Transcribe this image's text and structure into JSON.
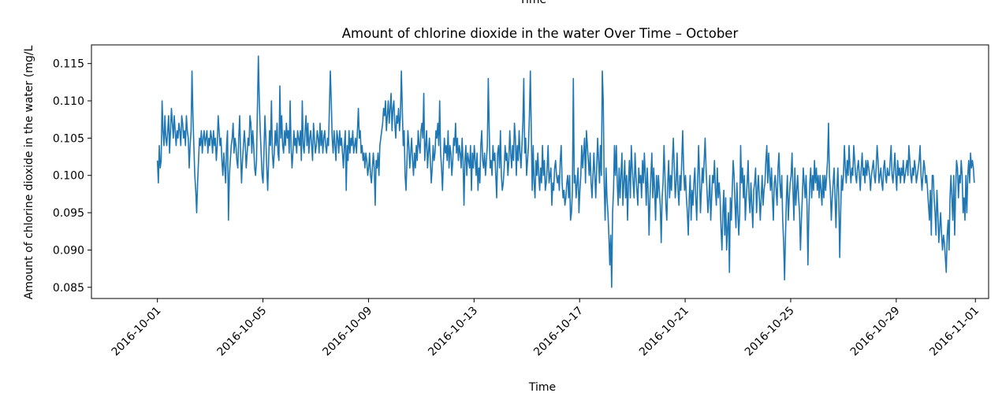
{
  "chart_data": {
    "type": "line",
    "title": "Amount of chlorine dioxide in the water Over Time – October",
    "top_label_cut": "Time",
    "xlabel": "Time",
    "ylabel": "Amount of chlorine dioxide in the water (mg/L",
    "xlim": [
      "2016-09-28T12:00",
      "2016-11-01T12:00"
    ],
    "ylim": [
      0.0835,
      0.1175
    ],
    "grid": false,
    "legend": "none",
    "line_color": "#1f77b4",
    "x_ticks": [
      "2016-10-01",
      "2016-10-05",
      "2016-10-09",
      "2016-10-13",
      "2016-10-17",
      "2016-10-21",
      "2016-10-25",
      "2016-10-29",
      "2016-11-01"
    ],
    "y_ticks": [
      "0.085",
      "0.090",
      "0.095",
      "0.100",
      "0.105",
      "0.110",
      "0.115"
    ],
    "series": [
      {
        "name": "",
        "sampling": "hourly, 2016-10-01 00:00 to 2016-10-31 23:00",
        "x_start": "2016-10-01T00:00",
        "x_end": "2016-10-31T23:00",
        "values": [
          0.102,
          0.099,
          0.104,
          0.101,
          0.102,
          0.11,
          0.106,
          0.104,
          0.108,
          0.105,
          0.104,
          0.106,
          0.108,
          0.103,
          0.106,
          0.109,
          0.107,
          0.105,
          0.108,
          0.106,
          0.104,
          0.106,
          0.105,
          0.107,
          0.106,
          0.104,
          0.108,
          0.107,
          0.105,
          0.106,
          0.104,
          0.108,
          0.106,
          0.105,
          0.101,
          0.104,
          0.106,
          0.114,
          0.108,
          0.104,
          0.1,
          0.098,
          0.095,
          0.099,
          0.102,
          0.105,
          0.104,
          0.106,
          0.103,
          0.105,
          0.106,
          0.104,
          0.105,
          0.106,
          0.103,
          0.105,
          0.104,
          0.106,
          0.105,
          0.103,
          0.106,
          0.104,
          0.105,
          0.102,
          0.104,
          0.108,
          0.106,
          0.104,
          0.105,
          0.102,
          0.1,
          0.103,
          0.101,
          0.099,
          0.104,
          0.106,
          0.094,
          0.1,
          0.102,
          0.104,
          0.105,
          0.107,
          0.103,
          0.105,
          0.104,
          0.102,
          0.101,
          0.105,
          0.108,
          0.103,
          0.099,
          0.102,
          0.104,
          0.106,
          0.104,
          0.101,
          0.103,
          0.105,
          0.104,
          0.108,
          0.107,
          0.103,
          0.106,
          0.104,
          0.101,
          0.1,
          0.102,
          0.109,
          0.116,
          0.11,
          0.106,
          0.103,
          0.1,
          0.099,
          0.103,
          0.108,
          0.105,
          0.101,
          0.098,
          0.102,
          0.106,
          0.104,
          0.11,
          0.103,
          0.101,
          0.103,
          0.106,
          0.104,
          0.107,
          0.103,
          0.102,
          0.112,
          0.105,
          0.108,
          0.104,
          0.103,
          0.106,
          0.104,
          0.107,
          0.105,
          0.106,
          0.103,
          0.11,
          0.104,
          0.101,
          0.103,
          0.106,
          0.104,
          0.105,
          0.103,
          0.106,
          0.105,
          0.104,
          0.106,
          0.102,
          0.11,
          0.104,
          0.103,
          0.106,
          0.108,
          0.104,
          0.107,
          0.103,
          0.105,
          0.106,
          0.104,
          0.102,
          0.107,
          0.105,
          0.103,
          0.104,
          0.106,
          0.105,
          0.103,
          0.107,
          0.104,
          0.106,
          0.103,
          0.105,
          0.106,
          0.104,
          0.103,
          0.105,
          0.104,
          0.109,
          0.114,
          0.11,
          0.105,
          0.103,
          0.106,
          0.104,
          0.102,
          0.106,
          0.105,
          0.103,
          0.106,
          0.104,
          0.105,
          0.103,
          0.101,
          0.104,
          0.106,
          0.098,
          0.104,
          0.102,
          0.106,
          0.103,
          0.105,
          0.104,
          0.106,
          0.103,
          0.104,
          0.105,
          0.103,
          0.106,
          0.109,
          0.105,
          0.106,
          0.103,
          0.104,
          0.102,
          0.103,
          0.101,
          0.103,
          0.102,
          0.1,
          0.101,
          0.103,
          0.1,
          0.099,
          0.101,
          0.103,
          0.101,
          0.096,
          0.102,
          0.101,
          0.103,
          0.1,
          0.104,
          0.105,
          0.106,
          0.107,
          0.109,
          0.108,
          0.11,
          0.106,
          0.108,
          0.11,
          0.107,
          0.109,
          0.111,
          0.106,
          0.109,
          0.11,
          0.107,
          0.105,
          0.108,
          0.107,
          0.109,
          0.106,
          0.108,
          0.114,
          0.109,
          0.104,
          0.106,
          0.1,
          0.098,
          0.102,
          0.106,
          0.104,
          0.101,
          0.103,
          0.105,
          0.102,
          0.1,
          0.103,
          0.101,
          0.104,
          0.102,
          0.106,
          0.104,
          0.103,
          0.106,
          0.107,
          0.105,
          0.111,
          0.102,
          0.104,
          0.106,
          0.101,
          0.103,
          0.105,
          0.102,
          0.099,
          0.101,
          0.104,
          0.102,
          0.103,
          0.106,
          0.105,
          0.107,
          0.104,
          0.11,
          0.103,
          0.101,
          0.098,
          0.102,
          0.105,
          0.103,
          0.104,
          0.102,
          0.106,
          0.101,
          0.104,
          0.103,
          0.1,
          0.102,
          0.105,
          0.104,
          0.107,
          0.103,
          0.105,
          0.102,
          0.104,
          0.103,
          0.101,
          0.105,
          0.102,
          0.096,
          0.102,
          0.104,
          0.1,
          0.103,
          0.102,
          0.101,
          0.104,
          0.098,
          0.103,
          0.101,
          0.104,
          0.102,
          0.1,
          0.103,
          0.098,
          0.101,
          0.099,
          0.104,
          0.106,
          0.102,
          0.101,
          0.103,
          0.1,
          0.102,
          0.104,
          0.113,
          0.106,
          0.101,
          0.102,
          0.1,
          0.104,
          0.102,
          0.103,
          0.1,
          0.097,
          0.103,
          0.104,
          0.101,
          0.106,
          0.1,
          0.098,
          0.099,
          0.101,
          0.104,
          0.102,
          0.103,
          0.1,
          0.102,
          0.106,
          0.103,
          0.101,
          0.104,
          0.102,
          0.107,
          0.105,
          0.1,
          0.104,
          0.102,
          0.106,
          0.103,
          0.101,
          0.104,
          0.107,
          0.113,
          0.103,
          0.105,
          0.1,
          0.102,
          0.104,
          0.108,
          0.114,
          0.106,
          0.098,
          0.104,
          0.099,
          0.097,
          0.102,
          0.1,
          0.103,
          0.1,
          0.098,
          0.101,
          0.099,
          0.104,
          0.1,
          0.102,
          0.098,
          0.099,
          0.101,
          0.104,
          0.099,
          0.1,
          0.101,
          0.096,
          0.099,
          0.098,
          0.101,
          0.102,
          0.1,
          0.099,
          0.1,
          0.098,
          0.102,
          0.104,
          0.099,
          0.097,
          0.098,
          0.096,
          0.097,
          0.099,
          0.1,
          0.097,
          0.1,
          0.094,
          0.095,
          0.098,
          0.113,
          0.099,
          0.1,
          0.097,
          0.099,
          0.101,
          0.095,
          0.098,
          0.1,
          0.104,
          0.101,
          0.103,
          0.105,
          0.099,
          0.106,
          0.104,
          0.102,
          0.1,
          0.103,
          0.099,
          0.097,
          0.1,
          0.103,
          0.1,
          0.097,
          0.101,
          0.105,
          0.102,
          0.099,
          0.104,
          0.1,
          0.114,
          0.11,
          0.099,
          0.094,
          0.101,
          0.097,
          0.095,
          0.092,
          0.088,
          0.092,
          0.085,
          0.095,
          0.098,
          0.104,
          0.1,
          0.104,
          0.099,
          0.096,
          0.101,
          0.097,
          0.1,
          0.103,
          0.096,
          0.099,
          0.102,
          0.097,
          0.1,
          0.094,
          0.099,
          0.102,
          0.097,
          0.104,
          0.101,
          0.099,
          0.097,
          0.103,
          0.1,
          0.098,
          0.096,
          0.101,
          0.099,
          0.1,
          0.097,
          0.102,
          0.099,
          0.103,
          0.1,
          0.096,
          0.101,
          0.098,
          0.092,
          0.097,
          0.1,
          0.103,
          0.097,
          0.101,
          0.098,
          0.094,
          0.1,
          0.097,
          0.1,
          0.098,
          0.096,
          0.091,
          0.097,
          0.099,
          0.104,
          0.1,
          0.096,
          0.094,
          0.099,
          0.102,
          0.097,
          0.1,
          0.098,
          0.102,
          0.105,
          0.101,
          0.097,
          0.099,
          0.103,
          0.098,
          0.096,
          0.1,
          0.098,
          0.102,
          0.106,
          0.101,
          0.098,
          0.1,
          0.097,
          0.095,
          0.092,
          0.097,
          0.1,
          0.094,
          0.098,
          0.096,
          0.099,
          0.101,
          0.097,
          0.094,
          0.099,
          0.104,
          0.1,
          0.095,
          0.098,
          0.101,
          0.099,
          0.102,
          0.105,
          0.101,
          0.098,
          0.095,
          0.097,
          0.1,
          0.094,
          0.097,
          0.1,
          0.099,
          0.102,
          0.098,
          0.096,
          0.101,
          0.097,
          0.099,
          0.097,
          0.093,
          0.09,
          0.095,
          0.098,
          0.092,
          0.097,
          0.09,
          0.093,
          0.095,
          0.087,
          0.097,
          0.094,
          0.098,
          0.102,
          0.1,
          0.096,
          0.093,
          0.099,
          0.095,
          0.092,
          0.095,
          0.104,
          0.099,
          0.101,
          0.097,
          0.1,
          0.094,
          0.097,
          0.099,
          0.102,
          0.097,
          0.095,
          0.099,
          0.096,
          0.093,
          0.098,
          0.099,
          0.101,
          0.095,
          0.098,
          0.1,
          0.097,
          0.094,
          0.097,
          0.1,
          0.096,
          0.098,
          0.099,
          0.102,
          0.104,
          0.099,
          0.103,
          0.1,
          0.098,
          0.101,
          0.097,
          0.094,
          0.099,
          0.1,
          0.098,
          0.096,
          0.101,
          0.103,
          0.099,
          0.097,
          0.1,
          0.094,
          0.091,
          0.086,
          0.092,
          0.097,
          0.1,
          0.094,
          0.097,
          0.099,
          0.1,
          0.103,
          0.098,
          0.094,
          0.101,
          0.096,
          0.098,
          0.1,
          0.097,
          0.095,
          0.09,
          0.094,
          0.097,
          0.101,
          0.099,
          0.097,
          0.1,
          0.096,
          0.088,
          0.095,
          0.099,
          0.101,
          0.097,
          0.1,
          0.098,
          0.102,
          0.099,
          0.101,
          0.098,
          0.1,
          0.097,
          0.1,
          0.098,
          0.096,
          0.1,
          0.097,
          0.1,
          0.098,
          0.1,
          0.102,
          0.107,
          0.1,
          0.098,
          0.094,
          0.097,
          0.099,
          0.101,
          0.097,
          0.093,
          0.098,
          0.101,
          0.097,
          0.089,
          0.095,
          0.1,
          0.098,
          0.1,
          0.104,
          0.101,
          0.099,
          0.102,
          0.1,
          0.104,
          0.101,
          0.099,
          0.101,
          0.1,
          0.104,
          0.102,
          0.1,
          0.099,
          0.101,
          0.102,
          0.1,
          0.098,
          0.101,
          0.103,
          0.1,
          0.101,
          0.099,
          0.102,
          0.1,
          0.102,
          0.101,
          0.1,
          0.098,
          0.1,
          0.101,
          0.102,
          0.1,
          0.099,
          0.101,
          0.104,
          0.102,
          0.099,
          0.1,
          0.101,
          0.099,
          0.098,
          0.101,
          0.102,
          0.1,
          0.099,
          0.101,
          0.1,
          0.1,
          0.102,
          0.104,
          0.1,
          0.099,
          0.101,
          0.103,
          0.1,
          0.098,
          0.102,
          0.1,
          0.101,
          0.099,
          0.101,
          0.1,
          0.102,
          0.099,
          0.1,
          0.101,
          0.102,
          0.1,
          0.104,
          0.102,
          0.1,
          0.099,
          0.101,
          0.1,
          0.102,
          0.101,
          0.099,
          0.1,
          0.101,
          0.102,
          0.104,
          0.1,
          0.098,
          0.1,
          0.102,
          0.101,
          0.099,
          0.1,
          0.098,
          0.096,
          0.094,
          0.098,
          0.092,
          0.1,
          0.1,
          0.097,
          0.095,
          0.092,
          0.098,
          0.095,
          0.091,
          0.093,
          0.095,
          0.092,
          0.09,
          0.092,
          0.091,
          0.089,
          0.087,
          0.092,
          0.094,
          0.09,
          0.097,
          0.1,
          0.097,
          0.094,
          0.1,
          0.092,
          0.098,
          0.102,
          0.101,
          0.097,
          0.1,
          0.099,
          0.102,
          0.1,
          0.095,
          0.097,
          0.094,
          0.1,
          0.095,
          0.1,
          0.102,
          0.099,
          0.103,
          0.101,
          0.102,
          0.101,
          0.099
        ]
      }
    ]
  }
}
